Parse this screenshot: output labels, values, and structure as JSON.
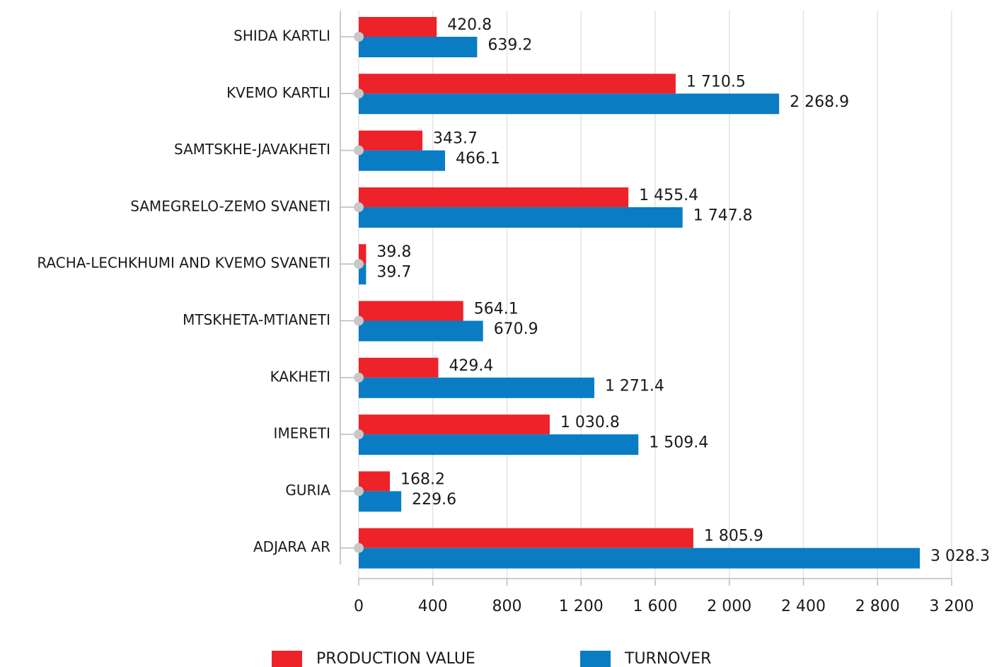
{
  "chart_data": {
    "type": "bar",
    "orientation": "horizontal",
    "categories": [
      "SHIDA KARTLI",
      "KVEMO KARTLI",
      "SAMTSKHE-JAVAKHETI",
      "SAMEGRELO-ZEMO SVANETI",
      "RACHA-LECHKHUMI AND KVEMO SVANETI",
      "MTSKHETA-MTIANETI",
      "KAKHETI",
      "IMERETI",
      "GURIA",
      "ADJARA AR"
    ],
    "series": [
      {
        "name": "PRODUCTION VALUE",
        "color": "#ee2229",
        "values": [
          420.8,
          1710.5,
          343.7,
          1455.4,
          39.8,
          564.1,
          429.4,
          1030.8,
          168.2,
          1805.9
        ],
        "value_labels": [
          "420.8",
          "1 710.5",
          "343.7",
          "1 455.4",
          "39.8",
          "564.1",
          "429.4",
          "1 030.8",
          "168.2",
          "1 805.9"
        ]
      },
      {
        "name": "TURNOVER",
        "color": "#0a7cc4",
        "values": [
          639.2,
          2268.9,
          466.1,
          1747.8,
          39.7,
          670.9,
          1271.4,
          1509.4,
          229.6,
          3028.3
        ],
        "value_labels": [
          "639.2",
          "2 268.9",
          "466.1",
          "1 747.8",
          "39.7",
          "670.9",
          "1 271.4",
          "1 509.4",
          "229.6",
          "3 028.3"
        ]
      }
    ],
    "xlim": [
      0,
      3200
    ],
    "xticks": [
      0,
      400,
      800,
      {
        "value": 1200,
        "label": "1 200"
      },
      {
        "value": 1600,
        "label": "1 600"
      },
      {
        "value": 2000,
        "label": "2 000"
      },
      {
        "value": 2400,
        "label": "2 400"
      },
      {
        "value": 2800,
        "label": "2 800"
      },
      {
        "value": 3200,
        "label": "3 200"
      }
    ],
    "grid": true,
    "legend": "bottom"
  }
}
